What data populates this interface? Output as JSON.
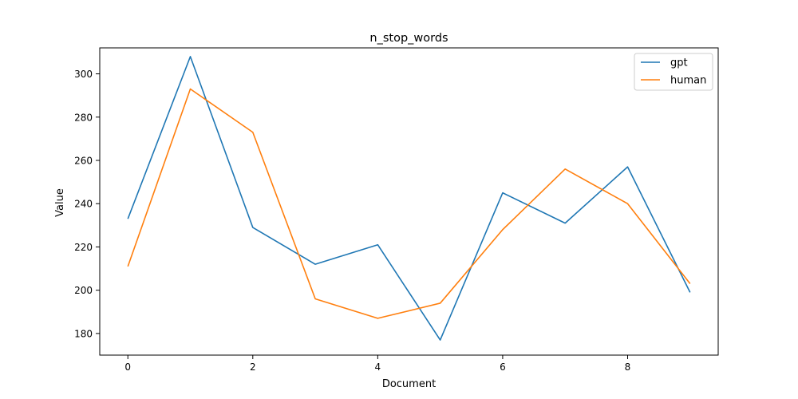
{
  "chart_data": {
    "type": "line",
    "title": "n_stop_words",
    "xlabel": "Document",
    "ylabel": "Value",
    "x": [
      0,
      1,
      2,
      3,
      4,
      5,
      6,
      7,
      8,
      9
    ],
    "xlim": [
      -0.45,
      9.45
    ],
    "ylim": [
      170,
      312
    ],
    "xticks": [
      0,
      2,
      4,
      6,
      8
    ],
    "yticks": [
      180,
      200,
      220,
      240,
      260,
      280,
      300
    ],
    "grid": false,
    "legend_position": "top-right",
    "series": [
      {
        "name": "gpt",
        "color": "#1f77b4",
        "values": [
          233,
          308,
          229,
          212,
          221,
          177,
          245,
          231,
          257,
          199
        ]
      },
      {
        "name": "human",
        "color": "#ff7f0e",
        "values": [
          211,
          293,
          273,
          196,
          187,
          194,
          228,
          256,
          240,
          203
        ]
      }
    ]
  }
}
